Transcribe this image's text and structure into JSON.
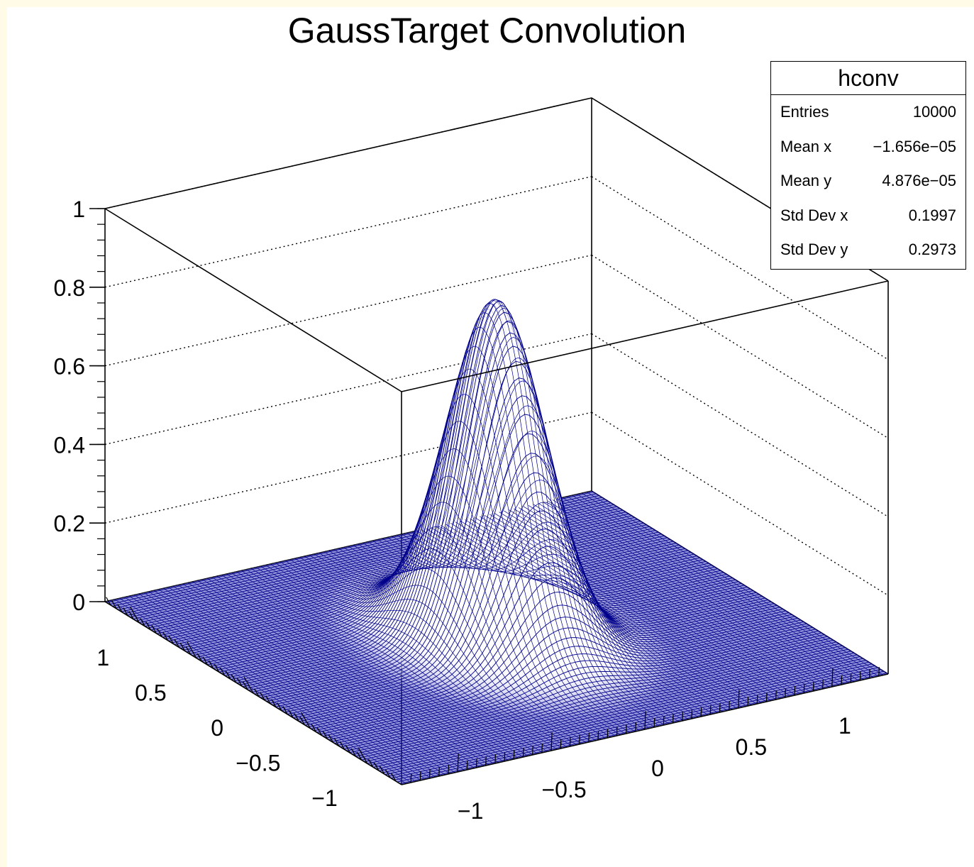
{
  "chart_data": {
    "type": "surface-lego",
    "title": "GaussTarget Convolution",
    "xlabel": "",
    "ylabel": "",
    "zlabel": "",
    "xlim": [
      -1.3,
      1.3
    ],
    "ylim": [
      -1.3,
      1.3
    ],
    "zlim": [
      0,
      1.0
    ],
    "x_ticks": [
      "−1",
      "−0.5",
      "0",
      "0.5",
      "1"
    ],
    "y_ticks": [
      "−1",
      "−0.5",
      "0",
      "0.5",
      "1"
    ],
    "z_ticks": [
      "0",
      "0.2",
      "0.4",
      "0.6",
      "0.8",
      "1"
    ],
    "grid": true,
    "peak": {
      "x": 0.0,
      "y": 0.0,
      "z": 0.86
    },
    "sigma_x": 0.2,
    "sigma_y": 0.3,
    "bins_x": 100,
    "bins_y": 100,
    "line_color": "#00008b",
    "fill_color": "#ffffff"
  },
  "stats": {
    "title": "hconv",
    "rows": [
      {
        "label": "Entries",
        "value": "10000"
      },
      {
        "label": "Mean x",
        "value": "−1.656e−05"
      },
      {
        "label": "Mean y",
        "value": "4.876e−05"
      },
      {
        "label": "Std Dev x",
        "value": "0.1997"
      },
      {
        "label": "Std Dev y",
        "value": "0.2973"
      }
    ]
  },
  "colors": {
    "page_border": "#fffbe6",
    "frame": "#000000",
    "surface": "#00008b"
  }
}
